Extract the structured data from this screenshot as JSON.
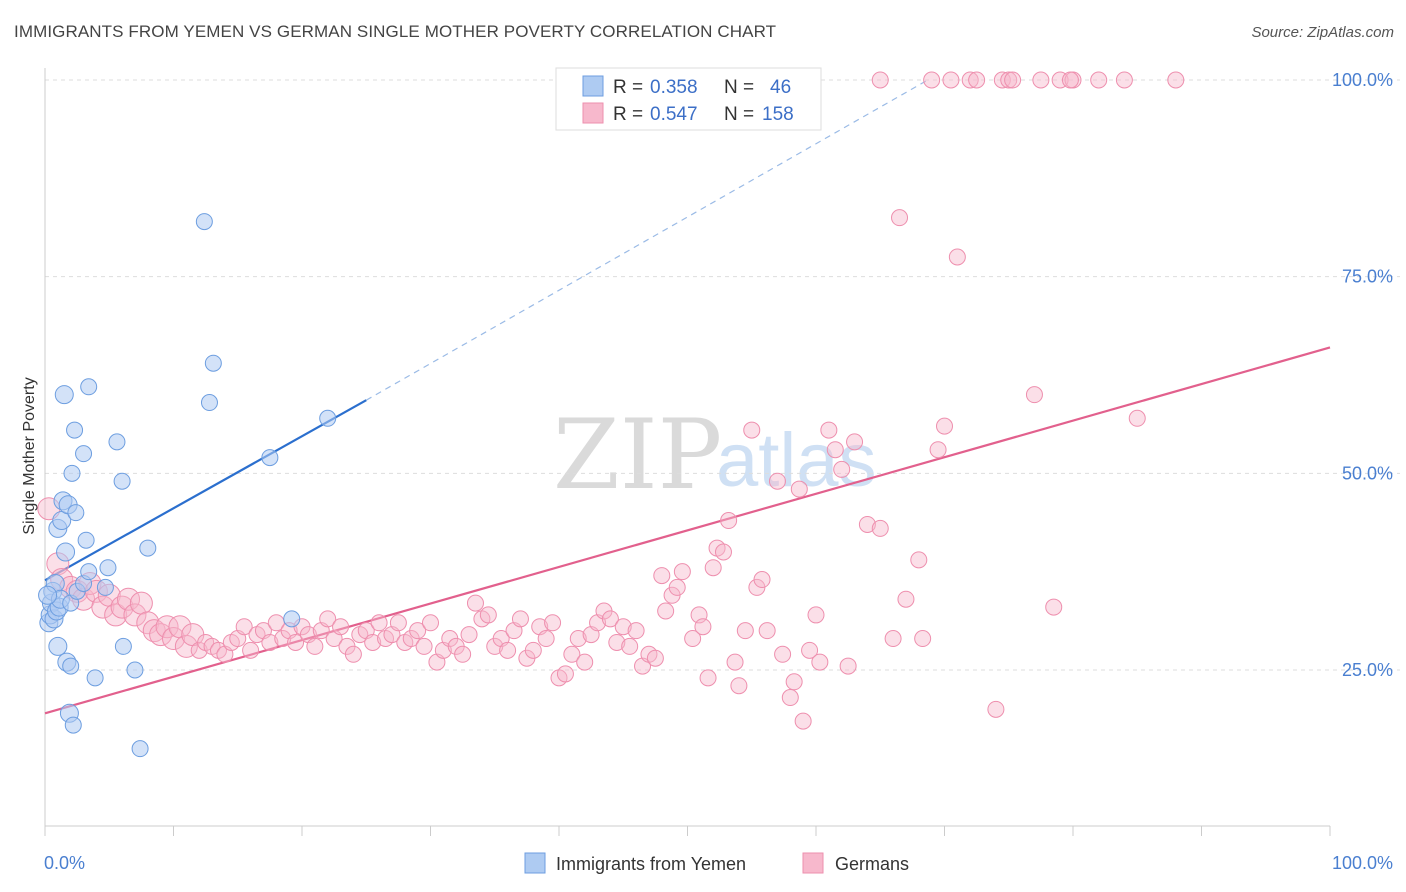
{
  "title": "IMMIGRANTS FROM YEMEN VS GERMAN SINGLE MOTHER POVERTY CORRELATION CHART",
  "source": "Source: ZipAtlas.com",
  "watermark": {
    "zip": "ZIP",
    "atlas": "atlas"
  },
  "legend": {
    "rows": [
      {
        "r_label": "R =",
        "r_value": "0.358",
        "n_label": "N =",
        "n_value": "46"
      },
      {
        "r_label": "R =",
        "r_value": "0.547",
        "n_label": "N =",
        "n_value": "158"
      }
    ]
  },
  "bottom_legend": [
    "Immigrants from Yemen",
    "Germans"
  ],
  "colors": {
    "yemen_fill": "#aecbf2",
    "yemen_stroke": "#6d9ee0",
    "yemen_line": "#2b6fce",
    "german_fill": "#f7b8cc",
    "german_stroke": "#ee8fae",
    "german_line": "#e2608d",
    "tick_text": "#4a7fd0",
    "grid": "#dddddd"
  },
  "chart_data": {
    "type": "scatter",
    "title": "IMMIGRANTS FROM YEMEN VS GERMAN SINGLE MOTHER POVERTY CORRELATION CHART",
    "xlabel": "",
    "ylabel": "Single Mother Poverty",
    "xlim": [
      0,
      100
    ],
    "ylim": [
      5,
      105
    ],
    "x_tick_labels": [
      "0.0%",
      "100.0%"
    ],
    "y_ticks": [
      25,
      50,
      75,
      100
    ],
    "y_tick_labels": [
      "25.0%",
      "50.0%",
      "75.0%",
      "100.0%"
    ],
    "grid": "horizontal dashed",
    "legend_position": "top-center",
    "series": [
      {
        "name": "Immigrants from Yemen",
        "r": 0.358,
        "n": 46,
        "trendline": {
          "x": [
            0,
            25
          ],
          "y": [
            36.4,
            59.3
          ],
          "dashed_extension_to": [
            68.7,
            100
          ]
        },
        "points": [
          [
            0.3,
            31.0
          ],
          [
            0.4,
            32.0
          ],
          [
            0.5,
            33.5
          ],
          [
            0.6,
            35.0
          ],
          [
            0.7,
            31.5
          ],
          [
            0.8,
            36.0
          ],
          [
            0.9,
            32.5
          ],
          [
            1.0,
            28.0
          ],
          [
            1.0,
            43.0
          ],
          [
            1.1,
            33.0
          ],
          [
            1.2,
            34.0
          ],
          [
            1.3,
            44.0
          ],
          [
            1.4,
            46.5
          ],
          [
            1.5,
            60.0
          ],
          [
            1.6,
            40.0
          ],
          [
            1.7,
            26.0
          ],
          [
            1.8,
            46.0
          ],
          [
            1.9,
            19.5
          ],
          [
            2.0,
            33.5
          ],
          [
            2.0,
            25.5
          ],
          [
            2.1,
            50.0
          ],
          [
            2.2,
            18.0
          ],
          [
            2.3,
            55.5
          ],
          [
            2.4,
            45.0
          ],
          [
            2.5,
            35.0
          ],
          [
            3.0,
            52.5
          ],
          [
            3.0,
            36.0
          ],
          [
            3.2,
            41.5
          ],
          [
            3.4,
            61.0
          ],
          [
            3.4,
            37.5
          ],
          [
            3.9,
            24.0
          ],
          [
            4.9,
            38.0
          ],
          [
            4.7,
            35.5
          ],
          [
            5.6,
            54.0
          ],
          [
            6.0,
            49.0
          ],
          [
            6.1,
            28.0
          ],
          [
            7.0,
            25.0
          ],
          [
            7.4,
            15.0
          ],
          [
            8.0,
            40.5
          ],
          [
            12.4,
            82.0
          ],
          [
            12.8,
            59.0
          ],
          [
            13.1,
            64.0
          ],
          [
            17.5,
            52.0
          ],
          [
            19.2,
            31.5
          ],
          [
            22.0,
            57.0
          ],
          [
            0.2,
            34.5
          ]
        ]
      },
      {
        "name": "Germans",
        "r": 0.547,
        "n": 158,
        "trendline": {
          "x": [
            0,
            100
          ],
          "y": [
            19.5,
            66.0
          ]
        },
        "points": [
          [
            0.3,
            45.5
          ],
          [
            1.0,
            38.5
          ],
          [
            1.3,
            36.5
          ],
          [
            2.0,
            35.5
          ],
          [
            2.5,
            35.0
          ],
          [
            3.0,
            34.0
          ],
          [
            3.5,
            36.0
          ],
          [
            4.0,
            35.0
          ],
          [
            4.5,
            33.0
          ],
          [
            5.0,
            34.5
          ],
          [
            5.5,
            32.0
          ],
          [
            6.0,
            33.0
          ],
          [
            6.5,
            34.0
          ],
          [
            7.0,
            32.0
          ],
          [
            7.5,
            33.5
          ],
          [
            8.0,
            31.0
          ],
          [
            8.5,
            30.0
          ],
          [
            9.0,
            29.5
          ],
          [
            9.5,
            30.5
          ],
          [
            10.0,
            29.0
          ],
          [
            10.5,
            30.5
          ],
          [
            11.0,
            28.0
          ],
          [
            11.5,
            29.5
          ],
          [
            12.0,
            27.5
          ],
          [
            12.5,
            28.5
          ],
          [
            13.0,
            28.0
          ],
          [
            13.5,
            27.5
          ],
          [
            14.0,
            27.0
          ],
          [
            14.5,
            28.5
          ],
          [
            15.0,
            29.0
          ],
          [
            15.5,
            30.5
          ],
          [
            16.0,
            27.5
          ],
          [
            16.5,
            29.5
          ],
          [
            17.0,
            30.0
          ],
          [
            17.5,
            28.5
          ],
          [
            18.0,
            31.0
          ],
          [
            18.5,
            29.0
          ],
          [
            19.0,
            30.0
          ],
          [
            19.5,
            28.5
          ],
          [
            20.0,
            30.5
          ],
          [
            20.5,
            29.5
          ],
          [
            21.0,
            28.0
          ],
          [
            21.5,
            30.0
          ],
          [
            22.0,
            31.5
          ],
          [
            22.5,
            29.0
          ],
          [
            23.0,
            30.5
          ],
          [
            23.5,
            28.0
          ],
          [
            24.0,
            27.0
          ],
          [
            24.5,
            29.5
          ],
          [
            25.0,
            30.0
          ],
          [
            25.5,
            28.5
          ],
          [
            26.0,
            31.0
          ],
          [
            26.5,
            29.0
          ],
          [
            27.0,
            29.5
          ],
          [
            27.5,
            31.0
          ],
          [
            28.0,
            28.5
          ],
          [
            28.5,
            29.0
          ],
          [
            29.0,
            30.0
          ],
          [
            29.5,
            28.0
          ],
          [
            30.0,
            31.0
          ],
          [
            30.5,
            26.0
          ],
          [
            31.0,
            27.5
          ],
          [
            31.5,
            29.0
          ],
          [
            32.0,
            28.0
          ],
          [
            32.5,
            27.0
          ],
          [
            33.0,
            29.5
          ],
          [
            33.5,
            33.5
          ],
          [
            34.0,
            31.5
          ],
          [
            34.5,
            32.0
          ],
          [
            35.0,
            28.0
          ],
          [
            35.5,
            29.0
          ],
          [
            36.0,
            27.5
          ],
          [
            36.5,
            30.0
          ],
          [
            37.0,
            31.5
          ],
          [
            37.5,
            26.5
          ],
          [
            38.0,
            27.5
          ],
          [
            38.5,
            30.5
          ],
          [
            39.0,
            29.0
          ],
          [
            39.5,
            31.0
          ],
          [
            40.0,
            24.0
          ],
          [
            40.5,
            24.5
          ],
          [
            41.0,
            27.0
          ],
          [
            41.5,
            29.0
          ],
          [
            42.0,
            26.0
          ],
          [
            42.5,
            29.5
          ],
          [
            43.0,
            31.0
          ],
          [
            43.5,
            32.5
          ],
          [
            44.0,
            31.5
          ],
          [
            44.5,
            28.5
          ],
          [
            45.0,
            30.5
          ],
          [
            45.5,
            28.0
          ],
          [
            46.0,
            30.0
          ],
          [
            46.5,
            25.5
          ],
          [
            47.0,
            27.0
          ],
          [
            47.5,
            26.5
          ],
          [
            48.0,
            37.0
          ],
          [
            48.3,
            32.5
          ],
          [
            48.8,
            34.5
          ],
          [
            49.2,
            35.5
          ],
          [
            49.6,
            37.5
          ],
          [
            50.4,
            29.0
          ],
          [
            50.9,
            32.0
          ],
          [
            51.2,
            30.5
          ],
          [
            51.6,
            24.0
          ],
          [
            52.0,
            38.0
          ],
          [
            52.3,
            40.5
          ],
          [
            52.8,
            40.0
          ],
          [
            53.2,
            44.0
          ],
          [
            53.7,
            26.0
          ],
          [
            54.0,
            23.0
          ],
          [
            54.5,
            30.0
          ],
          [
            55.0,
            55.5
          ],
          [
            55.4,
            35.5
          ],
          [
            55.8,
            36.5
          ],
          [
            56.2,
            30.0
          ],
          [
            57.0,
            49.0
          ],
          [
            57.4,
            27.0
          ],
          [
            58.0,
            21.5
          ],
          [
            58.3,
            23.5
          ],
          [
            58.7,
            48.0
          ],
          [
            59.0,
            18.5
          ],
          [
            59.5,
            27.5
          ],
          [
            60.0,
            32.0
          ],
          [
            60.3,
            26.0
          ],
          [
            61.0,
            55.5
          ],
          [
            61.5,
            53.0
          ],
          [
            62.0,
            50.5
          ],
          [
            62.5,
            25.5
          ],
          [
            63.0,
            54.0
          ],
          [
            64.0,
            43.5
          ],
          [
            65.0,
            43.0
          ],
          [
            66.0,
            29.0
          ],
          [
            66.5,
            82.5
          ],
          [
            67.0,
            34.0
          ],
          [
            68.0,
            39.0
          ],
          [
            68.3,
            29.0
          ],
          [
            69.5,
            53.0
          ],
          [
            70.0,
            56.0
          ],
          [
            71.0,
            77.5
          ],
          [
            74.0,
            20.0
          ],
          [
            77.0,
            60.0
          ],
          [
            78.5,
            33.0
          ],
          [
            85.0,
            57.0
          ],
          [
            65.0,
            100.0
          ],
          [
            69.0,
            100.0
          ],
          [
            70.5,
            100.0
          ],
          [
            72.0,
            100.0
          ],
          [
            74.5,
            100.0
          ],
          [
            75.0,
            100.0
          ],
          [
            77.5,
            100.0
          ],
          [
            79.0,
            100.0
          ],
          [
            80.0,
            100.0
          ],
          [
            82.0,
            100.0
          ],
          [
            84.0,
            100.0
          ],
          [
            88.0,
            100.0
          ],
          [
            72.5,
            100.0
          ],
          [
            75.3,
            100.0
          ],
          [
            79.8,
            100.0
          ]
        ]
      }
    ]
  }
}
